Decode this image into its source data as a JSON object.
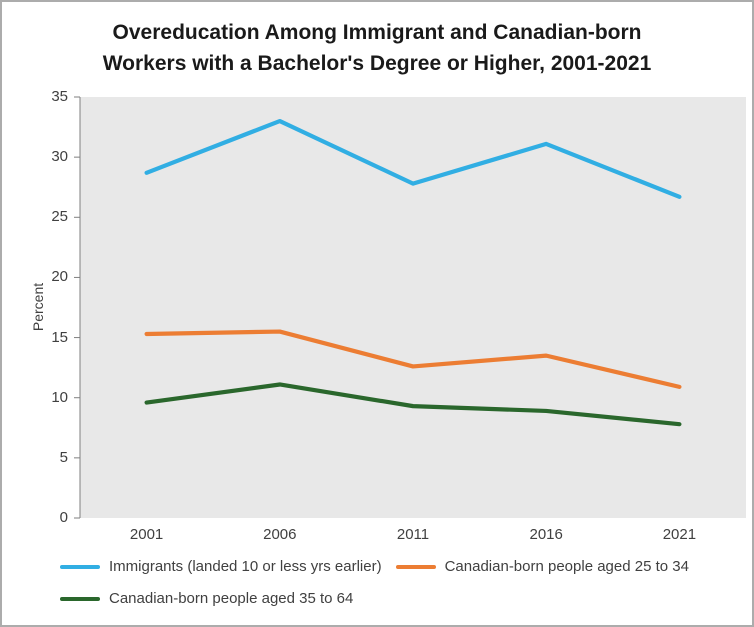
{
  "figure": {
    "title_lines": [
      "Overeducation Among Immigrant and Canadian-born",
      "Workers with a Bachelor's Degree or Higher, 2001-2021"
    ]
  },
  "chart_data": {
    "type": "line",
    "title": "Overeducation Among Immigrant and Canadian-born Workers with a Bachelor's Degree or Higher, 2001-2021",
    "ylabel": "Percent",
    "xlabel": "",
    "ylim": [
      0,
      35
    ],
    "yticks": [
      0,
      5,
      10,
      15,
      20,
      25,
      30,
      35
    ],
    "categories": [
      "2001",
      "2006",
      "2011",
      "2016",
      "2021"
    ],
    "series": [
      {
        "id": "immigrants",
        "name": "Immigrants (landed 10 or less yrs earlier)",
        "color": "#31AEE3",
        "values": [
          28.7,
          33.0,
          27.8,
          31.1,
          26.7
        ]
      },
      {
        "id": "canadian-born-25-34",
        "name": "Canadian-born people aged 25 to 34",
        "color": "#EC7D33",
        "values": [
          15.3,
          15.5,
          12.6,
          13.5,
          10.9
        ]
      },
      {
        "id": "canadian-born-35-64",
        "name": "Canadian-born people aged 35 to 64",
        "color": "#2A672C",
        "values": [
          9.6,
          11.1,
          9.3,
          8.9,
          7.8
        ]
      }
    ],
    "grid": false,
    "legend_position": "bottom",
    "plot_bg": "#E8E8E8",
    "axis_color": "#7F7F7F",
    "text_color": "#404040"
  }
}
